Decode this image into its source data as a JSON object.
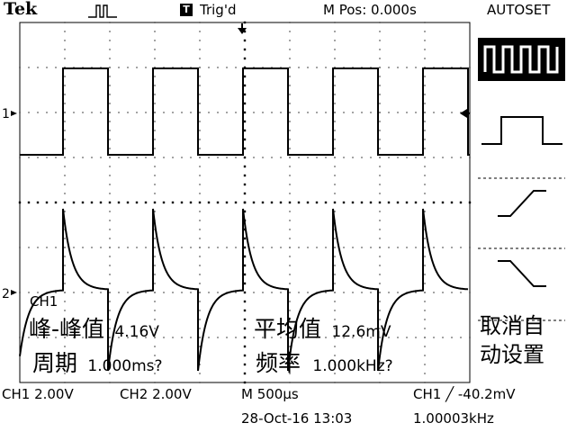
{
  "header": {
    "brand": "Tek",
    "trigger_status": "Trig'd",
    "trigger_badge": "T",
    "horiz_position": "M Pos: 0.000s",
    "menu_title": "AUTOSET"
  },
  "channel_markers": {
    "ch1": "1",
    "ch2": "2"
  },
  "measurements": {
    "channel_label": "CH1",
    "peak_to_peak_label": "峰-峰值",
    "peak_to_peak_value": "4.16V",
    "period_label": "周期",
    "period_value": "1.000ms?",
    "mean_label": "平均值",
    "mean_value": "12.6mV",
    "frequency_label": "频率",
    "frequency_value": "1.000kHz?"
  },
  "side_menu": {
    "cancel_line1": "取消自",
    "cancel_line2": "动设置"
  },
  "footer": {
    "ch1_scale": "CH1  2.00V",
    "ch2_scale": "CH2  2.00V",
    "timebase": "M 500µs",
    "trigger_readout": "CH1 ╱ -40.2mV",
    "datetime": "28-Oct-16 13:03",
    "frequency_counter": "1.00003kHz"
  },
  "colors": {
    "background": "#ffffff",
    "trace": "#000000",
    "grid": "#000000"
  }
}
